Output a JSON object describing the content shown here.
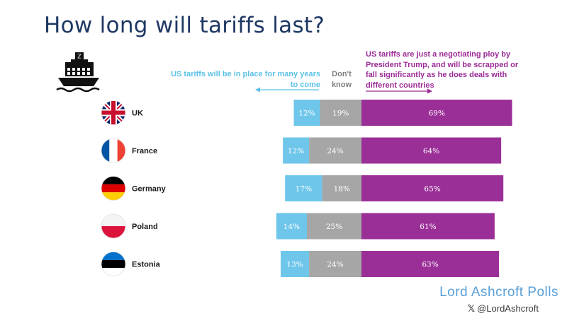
{
  "title": "How long will tariffs last?",
  "headers": {
    "left": "US tariffs will be in place for many years to come",
    "middle": "Don't know",
    "right": "US tariffs are just a negotiating ploy by President Trump, and will be scrapped or fall significantly as he does deals with different countries"
  },
  "icons": {
    "ship": "ship-icon"
  },
  "colors": {
    "left": "#6ec6ea",
    "middle": "#a6a6a6",
    "right": "#9b2f98",
    "title": "#1f3864"
  },
  "chart_data": {
    "type": "bar",
    "orientation": "horizontal",
    "stacked": true,
    "categories": [
      "UK",
      "France",
      "Germany",
      "Poland",
      "Estonia"
    ],
    "flags": [
      "uk-flag-icon",
      "france-flag-icon",
      "germany-flag-icon",
      "poland-flag-icon",
      "estonia-flag-icon"
    ],
    "series": [
      {
        "name": "US tariffs will be in place for many years to come",
        "values": [
          12,
          12,
          17,
          14,
          13
        ]
      },
      {
        "name": "Don't know",
        "values": [
          19,
          24,
          18,
          25,
          24
        ]
      },
      {
        "name": "US tariffs are just a negotiating ploy by President Trump, and will be scrapped or fall significantly as he does deals with different countries",
        "values": [
          69,
          64,
          65,
          61,
          63
        ]
      }
    ],
    "value_suffix": "%"
  },
  "footer": {
    "brand": "Lord Ashcroft Polls",
    "x_glyph": "𝕏",
    "handle": "@LordAshcroft"
  }
}
